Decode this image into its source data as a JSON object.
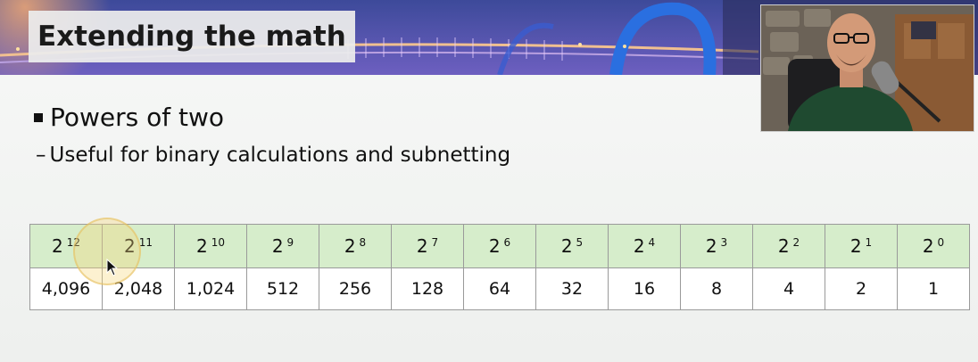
{
  "slide": {
    "title": "Extending the math",
    "bullet_main": "Powers of two",
    "bullet_sub": "Useful for binary calculations and subnetting",
    "sub_dash": "–"
  },
  "table": {
    "base": "2",
    "exponents": [
      "12",
      "11",
      "10",
      "9",
      "8",
      "7",
      "6",
      "5",
      "4",
      "3",
      "2",
      "1",
      "0"
    ],
    "values": [
      "4,096",
      "2,048",
      "1,024",
      "512",
      "256",
      "128",
      "64",
      "32",
      "16",
      "8",
      "4",
      "2",
      "1"
    ]
  },
  "colors": {
    "header_row": "#d6edcb",
    "value_row": "#ffffff",
    "border": "#9a9a9a",
    "banner": "#4b4f9c"
  },
  "icons": {
    "bullet": "square-bullet",
    "cursor": "mouse-pointer-icon"
  }
}
